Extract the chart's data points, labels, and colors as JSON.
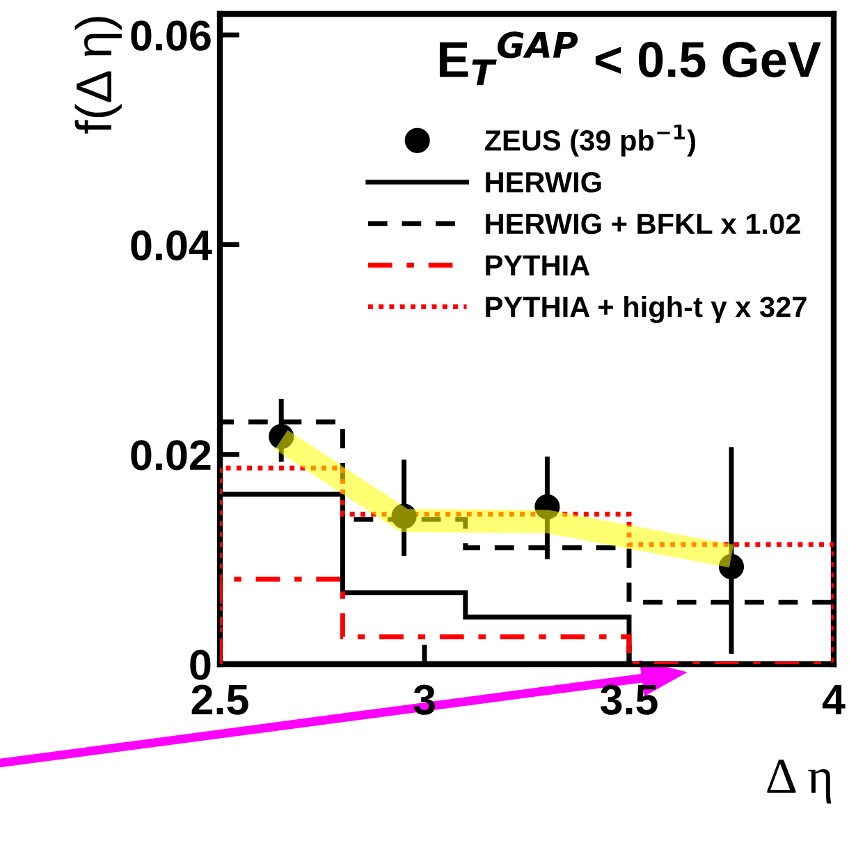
{
  "chart_data": {
    "type": "histogram",
    "xlabel": "Δ η",
    "ylabel": "f(Δ η)",
    "annotations": [
      "E$_{T}$$^{GAP}$ < 0.5 GeV"
    ],
    "bins": [
      2.5,
      2.8,
      3.1,
      3.5,
      4
    ],
    "xlim": [
      2.5,
      4
    ],
    "xticks": [
      2.5,
      3,
      3.5,
      4
    ],
    "ylim": [
      0,
      0.062
    ],
    "yticks": [
      0,
      0.02,
      0.04,
      0.06
    ],
    "legend": "top right",
    "grid": false,
    "series": [
      {
        "name": "ZEUS (39 pb$^{−1}$)",
        "type": "scatter",
        "color": "#000000",
        "marker": "circle",
        "x": [
          2.65,
          2.95,
          3.3,
          3.75
        ],
        "values": [
          0.0217,
          0.0141,
          0.015,
          0.0093
        ],
        "errors": [
          [
            0.0193,
            0.0253
          ],
          [
            0.0103,
            0.0195
          ],
          [
            0.01,
            0.0198
          ],
          [
            0.001,
            0.0207
          ]
        ]
      },
      {
        "type": "line",
        "color": "#ffff00",
        "x": [
          2.65,
          2.95,
          3.3,
          3.75
        ],
        "values": [
          0.0214,
          0.0137,
          0.0136,
          0.0103
        ]
      },
      {
        "name": "HERWIG",
        "color": "#000000",
        "line_style": "solid",
        "values": [
          0.0162,
          0.0068,
          0.0045,
          0
        ]
      },
      {
        "name": "HERWIG + BFKL x 1.02",
        "color": "#000000",
        "line_style": "dashed",
        "values": [
          0.0231,
          0.0138,
          0.0111,
          0.0059
        ]
      },
      {
        "name": "PYTHIA",
        "color": "#ff0000",
        "line_style": "dashdot",
        "values": [
          0.0081,
          0.0026,
          0.0026,
          0
        ]
      },
      {
        "name": "PYTHIA + high-t γ x 327",
        "color": "#ff0000",
        "line_style": "dotted",
        "values": [
          0.0187,
          0.0143,
          0.0143,
          0.0114
        ]
      }
    ]
  }
}
